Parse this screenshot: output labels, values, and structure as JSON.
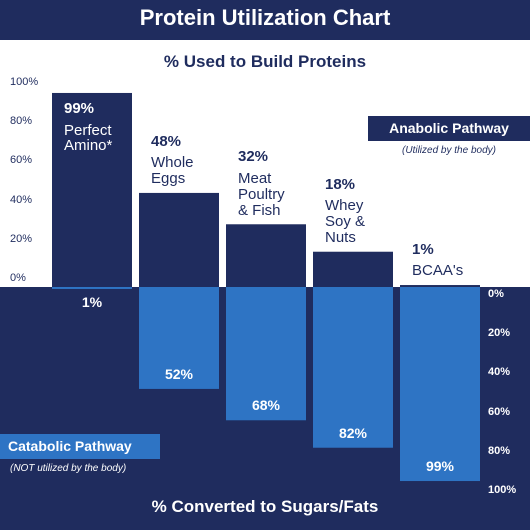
{
  "chart_data": {
    "type": "bar",
    "title": "Protein Utilization Chart",
    "subtitle": "% Used to Build Proteins",
    "bottom_title": "% Converted to Sugars/Fats",
    "categories": [
      "Perfect Amino*",
      "Whole Eggs",
      "Meat Poultry & Fish",
      "Whey Soy & Nuts",
      "BCAA's"
    ],
    "series": [
      {
        "name": "Anabolic Pathway",
        "note": "(Utilized by the body)",
        "color": "#1f2c5e",
        "values": [
          99,
          48,
          32,
          18,
          1
        ],
        "value_labels": [
          "99%",
          "48%",
          "32%",
          "18%",
          "1%"
        ]
      },
      {
        "name": "Catabolic Pathway",
        "note": "(NOT utilized by the body)",
        "color": "#2e74c4",
        "axis": "y2",
        "values": [
          1,
          52,
          68,
          82,
          99
        ],
        "value_labels": [
          "1%",
          "52%",
          "68%",
          "82%",
          "99%"
        ]
      }
    ],
    "ylim": [
      0,
      100
    ],
    "yticks": [
      {
        "value": 0,
        "label": "0%"
      },
      {
        "value": 20,
        "label": "20%"
      },
      {
        "value": 40,
        "label": "40%"
      },
      {
        "value": 60,
        "label": "60%"
      },
      {
        "value": 80,
        "label": "80%"
      },
      {
        "value": 100,
        "label": "100%"
      }
    ],
    "y2lim": [
      0,
      100
    ],
    "y2ticks": [
      {
        "value": 0,
        "label": "0%"
      },
      {
        "value": 20,
        "label": "20%"
      },
      {
        "value": 40,
        "label": "40%"
      },
      {
        "value": 60,
        "label": "60%"
      },
      {
        "value": 80,
        "label": "80%"
      },
      {
        "value": 100,
        "label": "100%"
      }
    ]
  }
}
